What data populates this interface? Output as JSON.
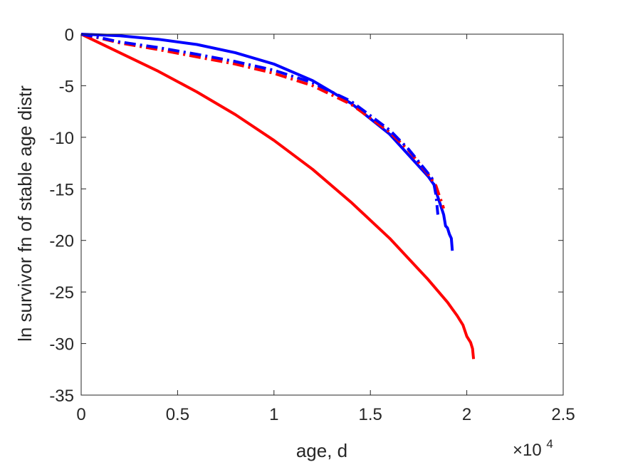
{
  "chart_data": {
    "type": "line",
    "title": "",
    "xlabel": "age, d",
    "ylabel": "ln survivor fn of stable age distr",
    "x_exponent_label": {
      "base": "×10",
      "exponent": "4"
    },
    "xlim": [
      0,
      25000
    ],
    "ylim": [
      -35,
      0
    ],
    "x_ticks": [
      0,
      5000,
      10000,
      15000,
      20000,
      25000
    ],
    "x_tick_labels": [
      "0",
      "0.5",
      "1",
      "1.5",
      "2",
      "2.5"
    ],
    "y_ticks": [
      0,
      -5,
      -10,
      -15,
      -20,
      -25,
      -30,
      -35
    ],
    "y_tick_labels": [
      "0",
      "-5",
      "-10",
      "-15",
      "-20",
      "-25",
      "-30",
      "-35"
    ],
    "grid": false,
    "legend": "none",
    "series": [
      {
        "color": "#ff0000",
        "style": "solid",
        "x": [
          0,
          2000,
          4000,
          6000,
          8000,
          10000,
          12000,
          14000,
          16000,
          18000,
          19000,
          19500,
          19800,
          20000,
          20200,
          20300,
          20350
        ],
        "y": [
          0,
          -1.8,
          -3.6,
          -5.6,
          -7.8,
          -10.3,
          -13.1,
          -16.3,
          -19.8,
          -23.8,
          -26.0,
          -27.3,
          -28.2,
          -29.3,
          -29.9,
          -30.5,
          -31.5
        ]
      },
      {
        "color": "#0000ff",
        "style": "solid",
        "x": [
          0,
          2000,
          4000,
          6000,
          8000,
          10000,
          12000,
          14000,
          16000,
          18000,
          18300,
          18500,
          18800,
          18900,
          19000,
          19100,
          19200,
          19250
        ],
        "y": [
          0,
          -0.15,
          -0.5,
          -1.0,
          -1.8,
          -2.9,
          -4.5,
          -6.7,
          -9.7,
          -13.8,
          -14.6,
          -15.8,
          -17.5,
          -18.6,
          -18.8,
          -19.4,
          -19.8,
          -21.0
        ]
      },
      {
        "color": "#ff0000",
        "style": "dashdot",
        "x": [
          0,
          1000,
          2000,
          4000,
          6000,
          8000,
          10000,
          12000,
          14000,
          16000,
          17000,
          18000,
          18400,
          18600,
          18700,
          18800
        ],
        "y": [
          0,
          -0.4,
          -0.85,
          -1.5,
          -2.2,
          -2.9,
          -3.8,
          -5.0,
          -6.8,
          -9.5,
          -11.3,
          -13.6,
          -14.7,
          -15.8,
          -16.3,
          -16.9
        ]
      },
      {
        "color": "#0000ff",
        "style": "dashdot",
        "x": [
          0,
          1000,
          2000,
          4000,
          6000,
          8000,
          10000,
          12000,
          14000,
          16000,
          17000,
          18000,
          18200,
          18300,
          18400,
          18500
        ],
        "y": [
          0,
          -0.35,
          -0.75,
          -1.3,
          -1.95,
          -2.65,
          -3.5,
          -4.7,
          -6.5,
          -9.3,
          -11.2,
          -13.5,
          -14.0,
          -14.6,
          -15.6,
          -17.5
        ]
      }
    ]
  }
}
